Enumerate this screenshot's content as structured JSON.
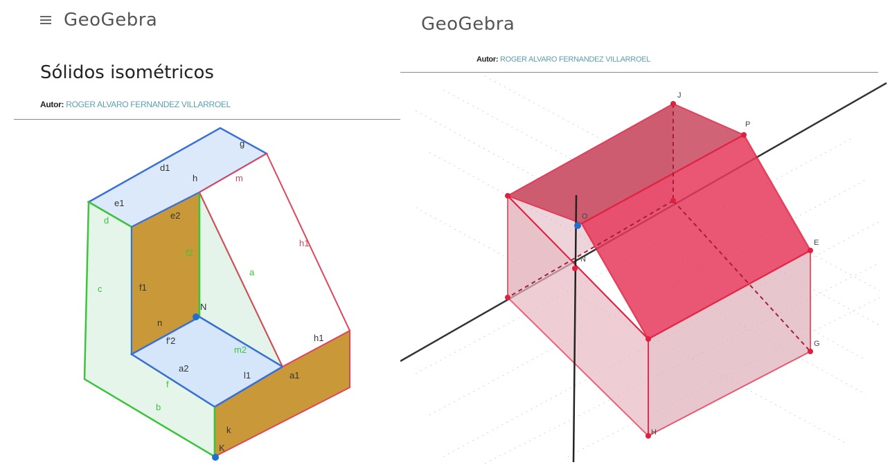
{
  "left": {
    "logo": "GeoGebra",
    "title": "Sólidos isométricos",
    "author_label": "Autor:",
    "author_name": "ROGER ALVARO FERNANDEZ VILLARROEL",
    "labels": {
      "g": "g",
      "d1": "d1",
      "h": "h",
      "m": "m",
      "e1": "e1",
      "e2": "e2",
      "d": "d",
      "f2": "f2",
      "a": "a",
      "c": "c",
      "f1": "f1",
      "N": "N",
      "h1": "h1",
      "n": "n",
      "f2b": "f'2",
      "m2": "m2",
      "i1": "i1",
      "a2": "a2",
      "l1": "l1",
      "a1": "a1",
      "b": "b",
      "f": "f",
      "k": "k",
      "K": "K"
    },
    "colors": {
      "blue": "#3a6fd6",
      "green": "#3cc43c",
      "red": "#e0455a",
      "brown": "#c99838"
    }
  },
  "right": {
    "logo": "GeoGebra",
    "author_label": "Autor:",
    "author_name": "ROGER ALVARO FERNANDEZ VILLARROEL",
    "labels": {
      "J": "J",
      "P": "P",
      "O": "O",
      "N": "N",
      "E": "E",
      "G": "G",
      "H": "H",
      "I": "I"
    },
    "colors": {
      "roof": "#e63a5c",
      "wall": "#d48a9a",
      "edge": "#e0203f",
      "axis": "#333333"
    }
  }
}
